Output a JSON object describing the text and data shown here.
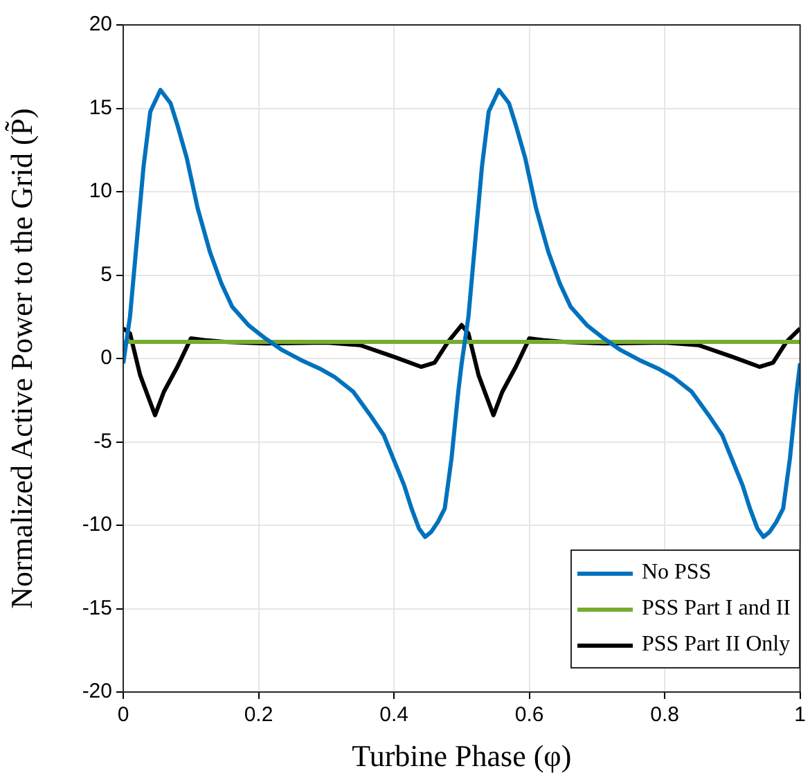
{
  "chart_data": {
    "type": "line",
    "xlabel": "Turbine Phase (φ)",
    "ylabel": "Normalized Active Power to the Grid (P̃)",
    "xlim": [
      0,
      1
    ],
    "xticks": [
      0,
      0.2,
      0.4,
      0.6,
      0.8,
      1
    ],
    "ylim": [
      -20,
      20
    ],
    "yticks": [
      -20,
      -15,
      -10,
      -5,
      0,
      5,
      10,
      15,
      20
    ],
    "grid": true,
    "legend": "bottom right",
    "marker": "none",
    "line_style": "solid",
    "series": [
      {
        "name": "No PSS",
        "color": "#0072bd",
        "x": [
          0,
          0.01,
          0.02,
          0.03,
          0.04,
          0.055,
          0.07,
          0.08,
          0.094,
          0.11,
          0.128,
          0.145,
          0.161,
          0.185,
          0.21,
          0.235,
          0.263,
          0.29,
          0.312,
          0.34,
          0.365,
          0.385,
          0.4,
          0.415,
          0.426,
          0.437,
          0.446,
          0.455,
          0.465,
          0.475,
          0.485,
          0.495,
          0.5,
          0.51,
          0.52,
          0.53,
          0.54,
          0.555,
          0.57,
          0.58,
          0.594,
          0.61,
          0.628,
          0.645,
          0.661,
          0.685,
          0.71,
          0.735,
          0.763,
          0.79,
          0.812,
          0.84,
          0.865,
          0.885,
          0.9,
          0.915,
          0.926,
          0.937,
          0.946,
          0.955,
          0.965,
          0.975,
          0.985,
          0.995,
          1
        ],
        "values": [
          -0.3,
          2.5,
          7,
          11.5,
          14.8,
          16.1,
          15.3,
          14,
          12,
          9,
          6.4,
          4.5,
          3.1,
          2,
          1.2,
          0.5,
          -0.1,
          -0.6,
          -1.1,
          -2,
          -3.4,
          -4.6,
          -6.1,
          -7.6,
          -9,
          -10.2,
          -10.7,
          -10.4,
          -9.8,
          -9,
          -6,
          -2,
          -0.3,
          2.5,
          7,
          11.5,
          14.8,
          16.1,
          15.3,
          14,
          12,
          9,
          6.4,
          4.5,
          3.1,
          2,
          1.2,
          0.5,
          -0.1,
          -0.6,
          -1.1,
          -2,
          -3.4,
          -4.6,
          -6.1,
          -7.6,
          -9,
          -10.2,
          -10.7,
          -10.4,
          -9.8,
          -9,
          -6,
          -2,
          -0.3
        ]
      },
      {
        "name": "PSS Part I and II",
        "color": "#77ac30",
        "x": [
          0,
          1
        ],
        "values": [
          1,
          1
        ]
      },
      {
        "name": "PSS Part II Only",
        "color": "#000000",
        "x": [
          0,
          0.01,
          0.025,
          0.047,
          0.06,
          0.08,
          0.1,
          0.12,
          0.15,
          0.21,
          0.3,
          0.35,
          0.4,
          0.44,
          0.46,
          0.48,
          0.5,
          0.51,
          0.525,
          0.547,
          0.56,
          0.58,
          0.6,
          0.62,
          0.65,
          0.71,
          0.8,
          0.85,
          0.9,
          0.94,
          0.96,
          0.98,
          1
        ],
        "values": [
          1.8,
          1.5,
          -1,
          -3.4,
          -2,
          -0.5,
          1.2,
          1.1,
          1,
          0.9,
          0.95,
          0.8,
          0.1,
          -0.5,
          -0.25,
          1,
          2,
          1.5,
          -1,
          -3.4,
          -2,
          -0.5,
          1.2,
          1.1,
          1,
          0.9,
          0.95,
          0.8,
          0.1,
          -0.5,
          -0.25,
          1,
          1.8
        ]
      }
    ]
  }
}
